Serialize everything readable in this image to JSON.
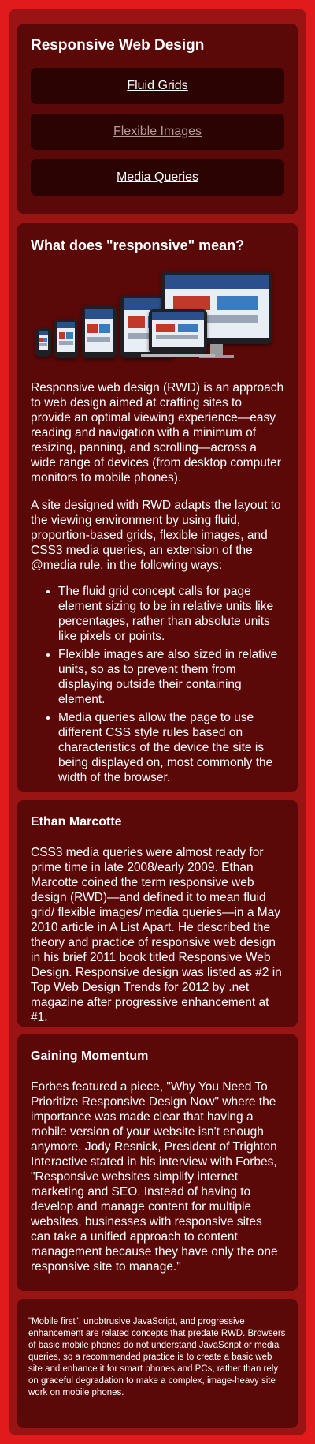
{
  "nav": {
    "title": "Responsive Web Design",
    "items": [
      {
        "label": "Fluid Grids"
      },
      {
        "label": "Flexible Images"
      },
      {
        "label": "Media Queries"
      }
    ]
  },
  "intro": {
    "heading": "What does \"responsive\" mean?",
    "paragraph1": "Responsive web design (RWD) is an approach to web design aimed at crafting sites to provide an optimal viewing experience—easy reading and navigation with a minimum of resizing, panning, and scrolling—across a wide range of devices (from desktop computer monitors to mobile phones).",
    "paragraph2": "A site designed with RWD adapts the layout to the viewing environment by using fluid, proportion-based grids, flexible images, and CSS3 media queries, an extension of the @media rule, in the following ways:",
    "bullets": [
      "The fluid grid concept calls for page element sizing to be in relative units like percentages, rather than absolute units like pixels or points.",
      "Flexible images are also sized in relative units, so as to prevent them from displaying outside their containing element.",
      "Media queries allow the page to use different CSS style rules based on characteristics of the device the site is being displayed on, most commonly the width of the browser."
    ]
  },
  "marcotte": {
    "heading": "Ethan Marcotte",
    "text": "CSS3 media queries were almost ready for prime time in late 2008/early 2009. Ethan Marcotte coined the term responsive web design (RWD)—and defined it to mean fluid grid/ flexible images/ media queries—in a May 2010 article in A List Apart. He described the theory and practice of responsive web design in his brief 2011 book titled Responsive Web Design. Responsive design was listed as #2 in Top Web Design Trends for 2012 by .net magazine after progressive enhancement at #1."
  },
  "momentum": {
    "heading": "Gaining Momentum",
    "text": "Forbes featured a piece, \"Why You Need To Prioritize Responsive Design Now\" where the importance was made clear that having a mobile version of your website isn't enough anymore. Jody Resnick, President of Trighton Interactive stated in his interview with Forbes, \"Responsive websites simplify internet marketing and SEO. Instead of having to develop and manage content for multiple websites, businesses with responsive sites can take a unified approach to content management because they have only the one responsive site to manage.\""
  },
  "footer": {
    "text": "\"Mobile first\", unobtrusive JavaScript, and progressive enhancement are related concepts that predate RWD. Browsers of basic mobile phones do not understand JavaScript or media queries, so a recommended practice is to create a basic web site and enhance it for smart phones and PCs, rather than rely on graceful degradation to make a complex, image-heavy site work on mobile phones."
  },
  "colors": {
    "page_background": "#e11b1b",
    "frame": "#9a1414",
    "panel": "#5a0808",
    "nav_button": "#2c0303",
    "muted_link": "#b79a9a"
  }
}
